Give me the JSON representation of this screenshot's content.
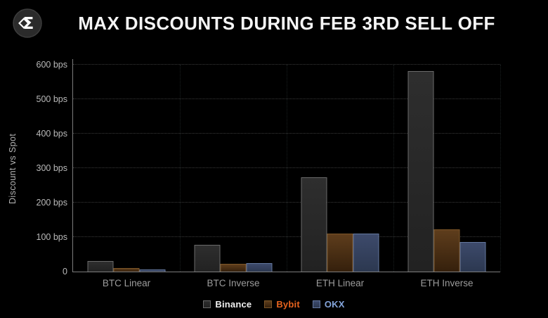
{
  "header": {
    "title": "MAX DISCOUNTS DURING FEB 3RD SELL OFF"
  },
  "logo": {
    "glyph": "Σ",
    "circle_color": "#2b2b2b",
    "ring_color": "#3d3d3d",
    "glyph_color": "#ffffff"
  },
  "chart_data": {
    "type": "bar",
    "title": "MAX DISCOUNTS DURING FEB 3RD SELL OFF",
    "xlabel": "",
    "ylabel": "Discount vs Spot",
    "categories": [
      "BTC Linear",
      "BTC Inverse",
      "ETH Linear",
      "ETH Inverse"
    ],
    "series": [
      {
        "name": "Binance",
        "values": [
          30,
          78,
          272,
          580
        ],
        "fill_top": "#2e2e2e",
        "fill_bottom": "#222222",
        "border": "#6a6a6a",
        "label_color": "#f0f0f0"
      },
      {
        "name": "Bybit",
        "values": [
          10,
          22,
          110,
          122
        ],
        "fill_top": "#5e3d1c",
        "fill_bottom": "#35200c",
        "border": "#7c5527",
        "label_color": "#e8641e"
      },
      {
        "name": "OKX",
        "values": [
          6,
          25,
          109,
          86
        ],
        "fill_top": "#3d4a6b",
        "fill_bottom": "#2c3850",
        "border": "#64789f",
        "label_color": "#84a5dc"
      }
    ],
    "y_ticks": [
      0,
      100,
      200,
      300,
      400,
      500,
      600
    ],
    "y_tick_suffix": " bps",
    "y_zero_label": "0",
    "ylim": [
      0,
      600
    ],
    "grid": "horizontal-dotted",
    "legend_position": "bottom",
    "background": "#000000"
  }
}
